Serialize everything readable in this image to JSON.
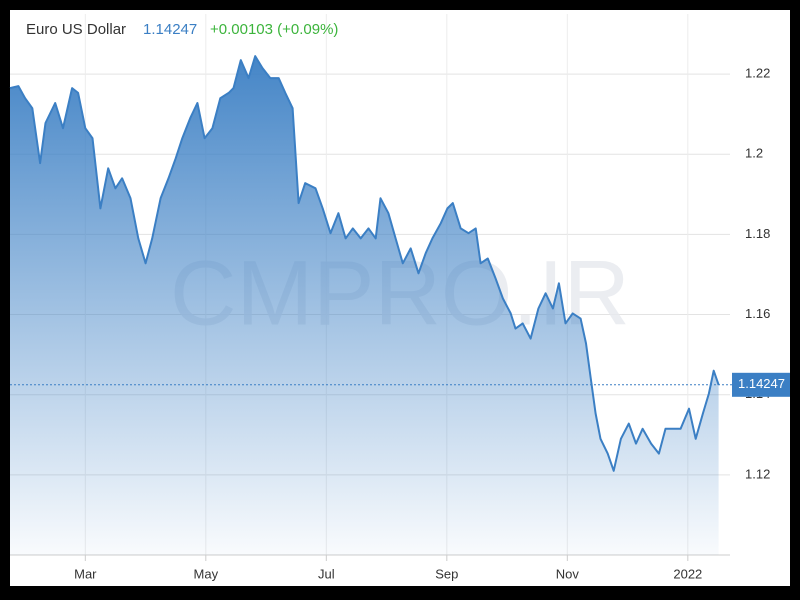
{
  "chart_data": {
    "type": "area",
    "title": "Euro US Dollar",
    "last_price": 1.14247,
    "change": "+0.00103 (+0.09%)",
    "watermark": "CMPRO.IR",
    "color": "#3b7fc4",
    "grid": true,
    "xlim": [
      1.75,
      13.7
    ],
    "ylim": [
      1.1,
      1.235
    ],
    "xticks": [
      {
        "value": 3,
        "label": "Mar"
      },
      {
        "value": 5,
        "label": "May"
      },
      {
        "value": 7,
        "label": "Jul"
      },
      {
        "value": 9,
        "label": "Sep"
      },
      {
        "value": 11,
        "label": "Nov"
      },
      {
        "value": 13,
        "label": "2022"
      }
    ],
    "yticks": [
      1.12,
      1.14,
      1.16,
      1.18,
      1.2,
      1.22
    ],
    "x": [
      1.75,
      1.89,
      2.0,
      2.12,
      2.25,
      2.34,
      2.5,
      2.63,
      2.78,
      2.88,
      3.0,
      3.12,
      3.25,
      3.38,
      3.5,
      3.61,
      3.75,
      3.88,
      4.0,
      4.11,
      4.25,
      4.38,
      4.5,
      4.61,
      4.74,
      4.86,
      4.98,
      5.11,
      5.24,
      5.38,
      5.46,
      5.58,
      5.71,
      5.82,
      5.94,
      6.07,
      6.21,
      6.32,
      6.44,
      6.54,
      6.65,
      6.82,
      6.94,
      7.07,
      7.2,
      7.32,
      7.44,
      7.57,
      7.7,
      7.82,
      7.9,
      8.03,
      8.15,
      8.27,
      8.4,
      8.53,
      8.65,
      8.76,
      8.9,
      9.01,
      9.1,
      9.23,
      9.36,
      9.48,
      9.56,
      9.68,
      9.81,
      9.93,
      10.06,
      10.14,
      10.26,
      10.39,
      10.52,
      10.64,
      10.76,
      10.86,
      10.97,
      11.09,
      11.22,
      11.31,
      11.39,
      11.47,
      11.55,
      11.67,
      11.77,
      11.89,
      12.02,
      12.14,
      12.25,
      12.39,
      12.52,
      12.63,
      12.75,
      12.88,
      13.02,
      13.13,
      13.25,
      13.35,
      13.43,
      13.51
    ],
    "values": [
      1.2165,
      1.217,
      1.214,
      1.2115,
      1.1978,
      1.2078,
      1.2128,
      1.2065,
      1.2165,
      1.2153,
      1.2065,
      1.204,
      1.1865,
      1.1965,
      1.1915,
      1.194,
      1.189,
      1.179,
      1.1728,
      1.179,
      1.189,
      1.194,
      1.199,
      1.204,
      1.209,
      1.2128,
      1.204,
      1.2065,
      1.214,
      1.2153,
      1.2165,
      1.2235,
      1.219,
      1.2245,
      1.2215,
      1.219,
      1.219,
      1.2153,
      1.2115,
      1.1878,
      1.1928,
      1.1915,
      1.1865,
      1.1803,
      1.1853,
      1.179,
      1.1815,
      1.179,
      1.1815,
      1.179,
      1.189,
      1.1853,
      1.179,
      1.1728,
      1.1765,
      1.1703,
      1.1753,
      1.179,
      1.1828,
      1.1865,
      1.1878,
      1.1815,
      1.1803,
      1.1815,
      1.1728,
      1.174,
      1.169,
      1.164,
      1.1603,
      1.1565,
      1.1578,
      1.154,
      1.1615,
      1.1653,
      1.1615,
      1.1678,
      1.1578,
      1.1603,
      1.159,
      1.1528,
      1.144,
      1.1353,
      1.129,
      1.1253,
      1.121,
      1.129,
      1.1328,
      1.1278,
      1.1315,
      1.1278,
      1.1253,
      1.1315,
      1.1315,
      1.1315,
      1.1365,
      1.129,
      1.1353,
      1.1403,
      1.146,
      1.14247
    ]
  }
}
